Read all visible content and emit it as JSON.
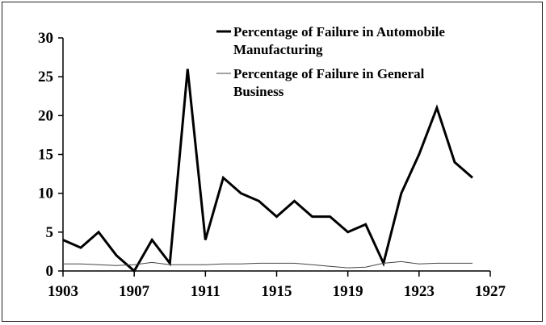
{
  "chart_data": {
    "type": "line",
    "title": "",
    "xlabel": "",
    "ylabel": "",
    "x": [
      1903,
      1904,
      1905,
      1906,
      1907,
      1908,
      1909,
      1910,
      1911,
      1912,
      1913,
      1914,
      1915,
      1916,
      1917,
      1918,
      1919,
      1920,
      1921,
      1922,
      1923,
      1924,
      1925,
      1926
    ],
    "xlim": [
      1903,
      1927
    ],
    "ylim": [
      0,
      30
    ],
    "x_ticks": [
      "1903",
      "1907",
      "1911",
      "1915",
      "1919",
      "1923",
      "1927"
    ],
    "y_ticks": [
      "0",
      "5",
      "10",
      "15",
      "20",
      "25",
      "30"
    ],
    "grid": false,
    "legend_position": "top-right",
    "series": [
      {
        "name": "Percentage of Failure in Automobile Manufacturing",
        "legend_lines": [
          "Percentage of Failure in Automobile",
          "Manufacturing"
        ],
        "color": "#000000",
        "values": [
          4,
          3,
          5,
          2,
          0,
          4,
          1,
          26,
          4,
          12,
          10,
          9,
          7,
          9,
          7,
          7,
          5,
          6,
          1,
          10,
          15,
          21,
          14,
          12
        ]
      },
      {
        "name": "Percentage of Failure in General Business",
        "legend_lines": [
          "Percentage of Failure in General",
          "Business"
        ],
        "color": "#444444",
        "values": [
          0.9,
          0.9,
          0.8,
          0.7,
          0.8,
          1.1,
          0.8,
          0.8,
          0.8,
          0.9,
          0.9,
          1.0,
          1.0,
          1.0,
          0.8,
          0.6,
          0.4,
          0.5,
          1.0,
          1.2,
          0.9,
          1.0,
          1.0,
          1.0
        ]
      }
    ]
  }
}
